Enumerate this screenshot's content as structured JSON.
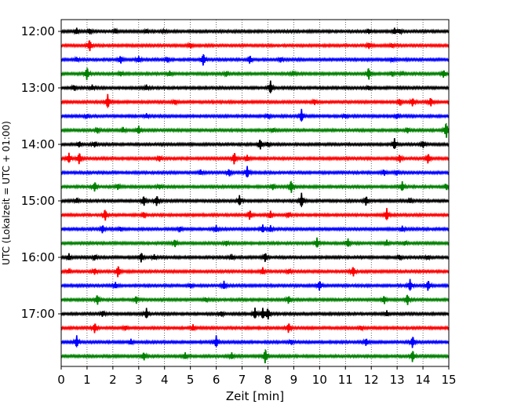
{
  "chart_data": {
    "type": "line",
    "title": "",
    "xlabel": "Zeit  [min]",
    "ylabel": "UTC (Lokalzeit = UTC + 01:00)",
    "xlim": [
      0,
      15
    ],
    "x_ticks": [
      "0",
      "1",
      "2",
      "3",
      "4",
      "5",
      "6",
      "7",
      "8",
      "9",
      "10",
      "11",
      "12",
      "13",
      "14",
      "15"
    ],
    "y_ticks": [
      "12:00",
      "13:00",
      "14:00",
      "15:00",
      "16:00",
      "17:00"
    ],
    "grid": "vertical dotted lines at each minute",
    "trace_colors": [
      "#000000",
      "#ff0000",
      "#0000ff",
      "#008000"
    ],
    "rows": [
      {
        "start": "12:00",
        "color": "#000000",
        "events": [
          [
            0.6,
            0.9
          ],
          [
            1.1,
            0.8
          ],
          [
            2.1,
            0.6
          ],
          [
            3.3,
            0.5
          ],
          [
            4.0,
            0.4
          ],
          [
            11.9,
            0.7
          ],
          [
            12.9,
            0.9
          ],
          [
            13.1,
            0.6
          ]
        ]
      },
      {
        "start": "12:15",
        "color": "#ff0000",
        "events": [
          [
            1.1,
            1.9
          ],
          [
            5.0,
            0.8
          ],
          [
            11.9,
            0.9
          ],
          [
            12.8,
            0.6
          ]
        ]
      },
      {
        "start": "12:30",
        "color": "#0000ff",
        "events": [
          [
            0.6,
            0.6
          ],
          [
            2.3,
            1.2
          ],
          [
            3.0,
            0.9
          ],
          [
            4.1,
            0.8
          ],
          [
            5.5,
            2.0
          ],
          [
            7.3,
            1.3
          ],
          [
            8.5,
            0.7
          ],
          [
            12.8,
            0.6
          ]
        ]
      },
      {
        "start": "12:45",
        "color": "#008000",
        "events": [
          [
            1.0,
            2.2
          ],
          [
            2.3,
            0.7
          ],
          [
            4.2,
            0.7
          ],
          [
            6.4,
            0.8
          ],
          [
            9.0,
            0.6
          ],
          [
            11.9,
            2.0
          ],
          [
            12.8,
            0.7
          ],
          [
            13.2,
            0.5
          ],
          [
            14.8,
            1.2
          ]
        ]
      },
      {
        "start": "13:00",
        "color": "#000000",
        "events": [
          [
            0.5,
            0.8
          ],
          [
            1.2,
            0.7
          ],
          [
            3.3,
            0.7
          ],
          [
            8.1,
            2.0
          ],
          [
            11.9,
            0.6
          ]
        ]
      },
      {
        "start": "13:15",
        "color": "#ff0000",
        "events": [
          [
            1.8,
            2.2
          ],
          [
            4.4,
            0.7
          ],
          [
            9.8,
            0.9
          ],
          [
            13.1,
            1.0
          ],
          [
            13.6,
            1.3
          ],
          [
            14.3,
            1.4
          ]
        ]
      },
      {
        "start": "13:30",
        "color": "#0000ff",
        "events": [
          [
            1.0,
            0.6
          ],
          [
            3.3,
            0.6
          ],
          [
            8.0,
            0.7
          ],
          [
            9.3,
            2.0
          ],
          [
            11.0,
            0.6
          ],
          [
            13.0,
            0.8
          ]
        ]
      },
      {
        "start": "13:45",
        "color": "#008000",
        "events": [
          [
            1.4,
            0.9
          ],
          [
            2.4,
            0.7
          ],
          [
            3.0,
            1.3
          ],
          [
            8.2,
            0.6
          ],
          [
            13.4,
            0.8
          ],
          [
            14.9,
            2.6
          ]
        ]
      },
      {
        "start": "14:00",
        "color": "#000000",
        "events": [
          [
            0.7,
            0.9
          ],
          [
            1.3,
            0.8
          ],
          [
            7.7,
            1.7
          ],
          [
            8.0,
            0.7
          ],
          [
            12.9,
            1.7
          ],
          [
            14.0,
            1.1
          ]
        ]
      },
      {
        "start": "14:15",
        "color": "#ff0000",
        "events": [
          [
            0.3,
            1.6
          ],
          [
            0.7,
            1.9
          ],
          [
            3.8,
            0.9
          ],
          [
            6.7,
            2.0
          ],
          [
            7.2,
            0.9
          ],
          [
            13.1,
            1.3
          ],
          [
            14.2,
            1.6
          ]
        ]
      },
      {
        "start": "14:30",
        "color": "#0000ff",
        "events": [
          [
            5.4,
            0.7
          ],
          [
            6.5,
            1.1
          ],
          [
            7.2,
            1.8
          ],
          [
            12.5,
            0.9
          ],
          [
            13.0,
            0.7
          ]
        ]
      },
      {
        "start": "14:45",
        "color": "#008000",
        "events": [
          [
            1.3,
            1.6
          ],
          [
            2.2,
            0.9
          ],
          [
            3.8,
            0.7
          ],
          [
            8.2,
            0.9
          ],
          [
            8.9,
            2.1
          ],
          [
            13.2,
            1.5
          ],
          [
            14.9,
            0.9
          ]
        ]
      },
      {
        "start": "15:00",
        "color": "#000000",
        "events": [
          [
            0.6,
            0.7
          ],
          [
            3.2,
            1.6
          ],
          [
            3.7,
            1.7
          ],
          [
            6.9,
            1.6
          ],
          [
            9.3,
            2.3
          ],
          [
            11.8,
            1.5
          ],
          [
            13.5,
            0.7
          ]
        ]
      },
      {
        "start": "15:15",
        "color": "#ff0000",
        "events": [
          [
            1.7,
            1.9
          ],
          [
            3.2,
            0.9
          ],
          [
            7.3,
            1.6
          ],
          [
            8.1,
            1.1
          ],
          [
            8.8,
            0.8
          ],
          [
            12.6,
            1.9
          ]
        ]
      },
      {
        "start": "15:30",
        "color": "#0000ff",
        "events": [
          [
            1.6,
            1.3
          ],
          [
            2.3,
            0.6
          ],
          [
            4.6,
            0.8
          ],
          [
            6.0,
            1.0
          ],
          [
            7.8,
            1.2
          ],
          [
            8.1,
            1.0
          ],
          [
            13.2,
            0.8
          ]
        ]
      },
      {
        "start": "15:45",
        "color": "#008000",
        "events": [
          [
            4.4,
            1.2
          ],
          [
            6.4,
            0.8
          ],
          [
            9.9,
            1.6
          ],
          [
            11.1,
            1.3
          ],
          [
            12.6,
            0.8
          ],
          [
            13.3,
            0.6
          ]
        ]
      },
      {
        "start": "16:00",
        "color": "#000000",
        "events": [
          [
            0.3,
            1.0
          ],
          [
            1.3,
            0.8
          ],
          [
            3.1,
            1.6
          ],
          [
            3.6,
            0.7
          ],
          [
            6.6,
            0.7
          ],
          [
            7.9,
            1.5
          ],
          [
            13.1,
            0.7
          ],
          [
            14.2,
            0.5
          ]
        ]
      },
      {
        "start": "16:15",
        "color": "#ff0000",
        "events": [
          [
            0.3,
            0.6
          ],
          [
            1.3,
            0.9
          ],
          [
            2.2,
            1.9
          ],
          [
            7.8,
            1.0
          ],
          [
            8.8,
            0.7
          ],
          [
            11.3,
            1.6
          ]
        ]
      },
      {
        "start": "16:30",
        "color": "#0000ff",
        "events": [
          [
            2.1,
            0.9
          ],
          [
            5.0,
            0.6
          ],
          [
            6.3,
            1.2
          ],
          [
            10.0,
            1.6
          ],
          [
            13.5,
            1.9
          ],
          [
            14.2,
            1.7
          ]
        ]
      },
      {
        "start": "16:45",
        "color": "#008000",
        "events": [
          [
            1.4,
            1.6
          ],
          [
            2.9,
            1.2
          ],
          [
            5.6,
            0.6
          ],
          [
            8.8,
            1.2
          ],
          [
            12.5,
            1.3
          ],
          [
            13.4,
            1.8
          ]
        ]
      },
      {
        "start": "17:00",
        "color": "#000000",
        "events": [
          [
            1.6,
            0.9
          ],
          [
            3.3,
            1.6
          ],
          [
            6.2,
            0.8
          ],
          [
            7.5,
            1.7
          ],
          [
            7.8,
            1.7
          ],
          [
            8.0,
            1.9
          ],
          [
            12.6,
            0.8
          ]
        ]
      },
      {
        "start": "17:15",
        "color": "#ff0000",
        "events": [
          [
            1.3,
            1.6
          ],
          [
            2.5,
            0.7
          ],
          [
            5.1,
            0.9
          ],
          [
            8.8,
            1.6
          ],
          [
            11.6,
            0.6
          ]
        ]
      },
      {
        "start": "17:30",
        "color": "#0000ff",
        "events": [
          [
            0.6,
            1.9
          ],
          [
            2.7,
            0.8
          ],
          [
            6.0,
            1.9
          ],
          [
            8.9,
            0.7
          ],
          [
            11.8,
            1.2
          ],
          [
            13.6,
            1.9
          ]
        ]
      },
      {
        "start": "17:45",
        "color": "#008000",
        "events": [
          [
            3.2,
            1.3
          ],
          [
            4.8,
            1.0
          ],
          [
            6.6,
            1.0
          ],
          [
            7.9,
            2.5
          ],
          [
            13.6,
            1.9
          ]
        ]
      }
    ]
  }
}
